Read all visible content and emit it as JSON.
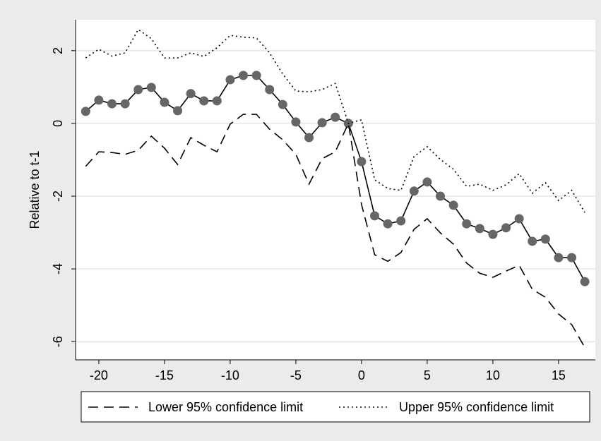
{
  "chart_data": {
    "type": "line",
    "y_label": "Relative to t-1",
    "x": [
      -21,
      -20,
      -19,
      -18,
      -17,
      -16,
      -15,
      -14,
      -13,
      -12,
      -11,
      -10,
      -9,
      -8,
      -7,
      -6,
      -5,
      -4,
      -3,
      -2,
      -1,
      0,
      1,
      2,
      3,
      4,
      5,
      6,
      7,
      8,
      9,
      10,
      11,
      12,
      13,
      14,
      15,
      16,
      17
    ],
    "series": [
      {
        "color": "#000000",
        "marker_color": "#666666",
        "dash": "solid",
        "marker": true,
        "values": [
          0.33,
          0.64,
          0.54,
          0.54,
          0.93,
          0.99,
          0.58,
          0.35,
          0.82,
          0.62,
          0.62,
          1.2,
          1.32,
          1.32,
          0.93,
          0.52,
          0.04,
          -0.39,
          0.02,
          0.17,
          0,
          -1.05,
          -2.54,
          -2.76,
          -2.68,
          -1.86,
          -1.61,
          -2.0,
          -2.25,
          -2.76,
          -2.89,
          -3.05,
          -2.87,
          -2.62,
          -3.24,
          -3.18,
          -3.69,
          -3.69,
          -4.35
        ]
      },
      {
        "name": "Lower 95% confidence limit",
        "color": "#000000",
        "dash": "dashed",
        "marker": false,
        "values": [
          -1.18,
          -0.78,
          -0.8,
          -0.85,
          -0.74,
          -0.35,
          -0.68,
          -1.13,
          -0.39,
          -0.6,
          -0.78,
          -0.02,
          0.25,
          0.25,
          -0.16,
          -0.45,
          -0.85,
          -1.67,
          -0.97,
          -0.78,
          0,
          -2.23,
          -3.61,
          -3.79,
          -3.55,
          -2.91,
          -2.62,
          -3.01,
          -3.32,
          -3.84,
          -4.12,
          -4.23,
          -4.06,
          -3.9,
          -4.56,
          -4.78,
          -5.24,
          -5.53,
          -6.16
        ]
      },
      {
        "name": "Upper 95% confidence limit",
        "color": "#000000",
        "dash": "dotted",
        "marker": false,
        "values": [
          1.8,
          2.04,
          1.85,
          1.94,
          2.58,
          2.33,
          1.8,
          1.8,
          1.94,
          1.84,
          2.08,
          2.42,
          2.37,
          2.35,
          1.94,
          1.36,
          0.89,
          0.87,
          0.93,
          1.1,
          0,
          0.1,
          -1.55,
          -1.79,
          -1.84,
          -0.91,
          -0.64,
          -0.99,
          -1.26,
          -1.73,
          -1.67,
          -1.84,
          -1.69,
          -1.38,
          -1.92,
          -1.63,
          -2.12,
          -1.84,
          -2.45
        ]
      }
    ],
    "xlim": [
      -21.77,
      17.8
    ],
    "xticks": [
      -20,
      -15,
      -10,
      -5,
      0,
      5,
      10,
      15
    ],
    "ylim": [
      -6.5,
      2.85
    ],
    "yticks": [
      -6,
      -4,
      -2,
      0,
      2
    ],
    "grid": true,
    "legend_position": "bottom"
  }
}
